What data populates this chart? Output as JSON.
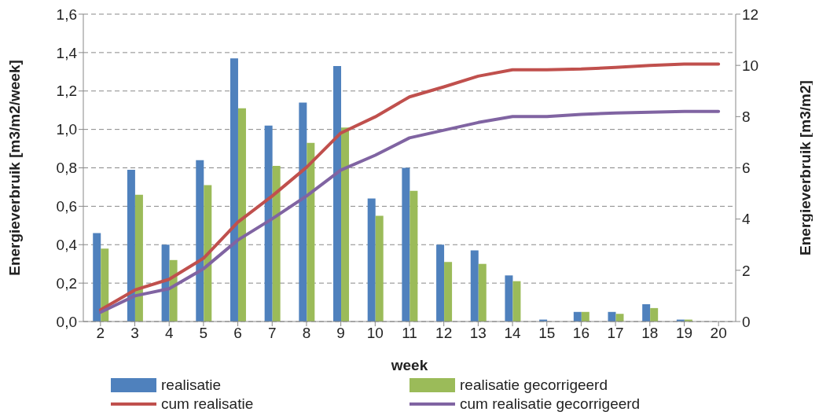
{
  "chart_data": {
    "type": "bar",
    "xlabel": "week",
    "ylabel": "Energieverbruik [m3/m2/week]",
    "y2label": "Energieverbruik [m3/m2]",
    "categories": [
      "2",
      "3",
      "4",
      "5",
      "6",
      "7",
      "8",
      "9",
      "10",
      "11",
      "12",
      "13",
      "14",
      "15",
      "16",
      "17",
      "18",
      "19",
      "20"
    ],
    "series": [
      {
        "name": "realisatie",
        "color": "#4f81bd",
        "values": [
          0.46,
          0.79,
          0.4,
          0.84,
          1.37,
          1.02,
          1.14,
          1.33,
          0.64,
          0.8,
          0.4,
          0.37,
          0.24,
          0.01,
          0.05,
          0.05,
          0.09,
          0.01,
          0
        ]
      },
      {
        "name": "realisatie gecorrigeerd",
        "color": "#9bbb59",
        "values": [
          0.38,
          0.66,
          0.32,
          0.71,
          1.11,
          0.81,
          0.93,
          1.01,
          0.55,
          0.68,
          0.31,
          0.3,
          0.21,
          0,
          0.05,
          0.04,
          0.07,
          0.01,
          0
        ]
      },
      {
        "name": "cum realisatie",
        "type": "line",
        "axis": "y2",
        "color": "#c0504d",
        "values": [
          0.45,
          1.23,
          1.65,
          2.47,
          3.88,
          4.9,
          6.02,
          7.36,
          7.99,
          8.77,
          9.16,
          9.58,
          9.83,
          9.83,
          9.86,
          9.92,
          10.0,
          10.05,
          10.05
        ]
      },
      {
        "name": "cum realisatie gecorrigeerd",
        "type": "line",
        "axis": "y2",
        "color": "#8064a2",
        "values": [
          0.36,
          1.0,
          1.28,
          2.06,
          3.18,
          4.01,
          4.9,
          5.91,
          6.49,
          7.17,
          7.47,
          7.77,
          8.0,
          8.0,
          8.09,
          8.14,
          8.17,
          8.2,
          8.2
        ]
      }
    ],
    "ylim": [
      0,
      1.6
    ],
    "yticks": [
      {
        "value": 0,
        "label": "0,0"
      },
      {
        "value": 0.2,
        "label": "0,2"
      },
      {
        "value": 0.4,
        "label": "0,4"
      },
      {
        "value": 0.6,
        "label": "0,6"
      },
      {
        "value": 0.8,
        "label": "0,8"
      },
      {
        "value": 1.0,
        "label": "1,0"
      },
      {
        "value": 1.2,
        "label": "1,2"
      },
      {
        "value": 1.4,
        "label": "1,4"
      },
      {
        "value": 1.6,
        "label": "1,6"
      }
    ],
    "y2lim": [
      0,
      12
    ],
    "y2ticks": [
      0,
      2,
      4,
      6,
      8,
      10,
      12
    ],
    "grid": "y",
    "legend": "bottom",
    "marker": "none",
    "line_style": "solid"
  }
}
